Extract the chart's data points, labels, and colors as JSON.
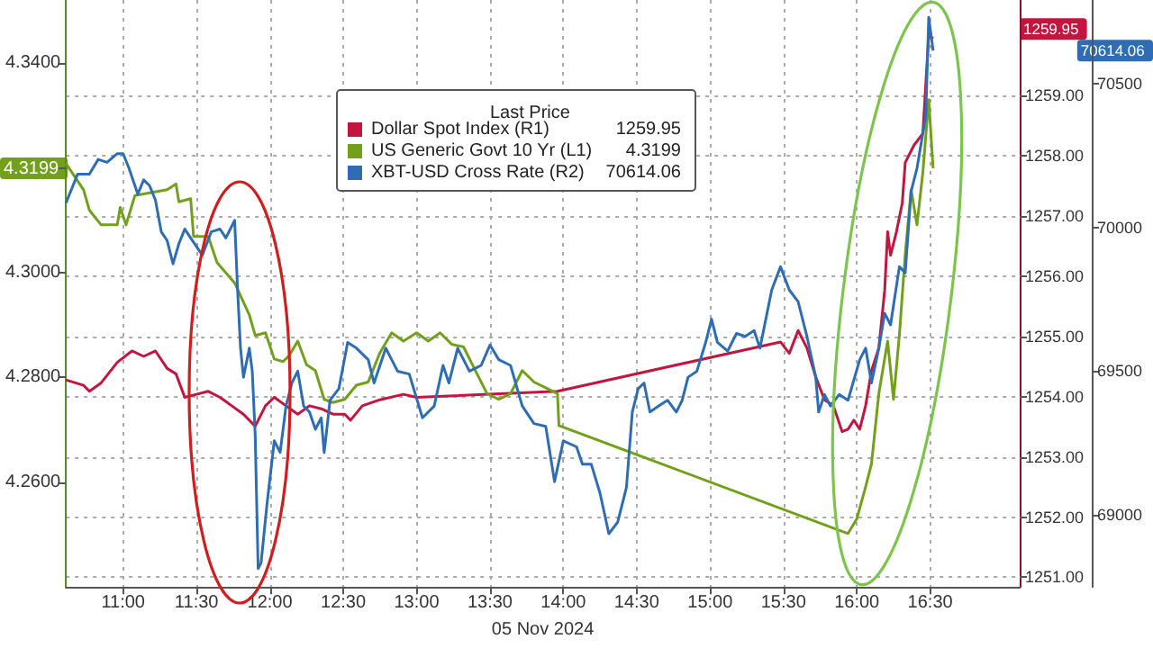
{
  "chart_data": {
    "type": "line",
    "xlabel": "05 Nov 2024",
    "legend_title": "Last Price",
    "legend": "top",
    "grid": true,
    "xlim": [
      10.61,
      17.11
    ],
    "xticks": [
      {
        "value": 11,
        "label": "11:00"
      },
      {
        "value": 11.5,
        "label": "11:30"
      },
      {
        "value": 12,
        "label": "12:00"
      },
      {
        "value": 12.5,
        "label": "12:30"
      },
      {
        "value": 13,
        "label": "13:00"
      },
      {
        "value": 13.5,
        "label": "13:30"
      },
      {
        "value": 14,
        "label": "14:00"
      },
      {
        "value": 14.5,
        "label": "14:30"
      },
      {
        "value": 15,
        "label": "15:00"
      },
      {
        "value": 15.5,
        "label": "15:30"
      },
      {
        "value": 16,
        "label": "16:00"
      },
      {
        "value": 16.5,
        "label": "16:30"
      }
    ],
    "ylim": [
      4.24,
      4.352
    ],
    "yticks": [
      {
        "value": 4.26,
        "label": "4.2600"
      },
      {
        "value": 4.28,
        "label": "4.2800"
      },
      {
        "value": 4.3,
        "label": "4.3000"
      },
      {
        "value": 4.32,
        "label": null
      },
      {
        "value": 4.34,
        "label": "4.3400"
      }
    ],
    "y2lim": [
      1250.84,
      1260.59
    ],
    "y2ticks": [
      {
        "value": 1251,
        "label": "1251.00"
      },
      {
        "value": 1252,
        "label": "1252.00"
      },
      {
        "value": 1253,
        "label": "1253.00"
      },
      {
        "value": 1254,
        "label": "1254.00"
      },
      {
        "value": 1255,
        "label": "1255.00"
      },
      {
        "value": 1256,
        "label": "1256.00"
      },
      {
        "value": 1257,
        "label": "1257.00"
      },
      {
        "value": 1258,
        "label": "1258.00"
      },
      {
        "value": 1259,
        "label": "1259.00"
      }
    ],
    "y3lim": [
      68750,
      70790
    ],
    "y3ticks": [
      69000,
      69500,
      70000,
      70500
    ],
    "annotations": [
      "1259.95",
      "4.3199",
      "70614.06"
    ],
    "series": [
      {
        "name": "Dollar Spot Index (R1)",
        "color": "#c0163f",
        "axis": "y2",
        "x": [
          10.61,
          10.73,
          10.77,
          10.85,
          10.96,
          11.06,
          11.14,
          11.22,
          11.3,
          11.36,
          11.42,
          11.5,
          11.58,
          11.66,
          11.74,
          11.82,
          11.9,
          11.97,
          12.03,
          12.11,
          12.19,
          12.27,
          12.35,
          12.43,
          12.51,
          12.55,
          12.63,
          12.75,
          12.91,
          13.0,
          13.96,
          15.48,
          15.54,
          15.6,
          15.66,
          15.72,
          15.78,
          15.84,
          15.9,
          15.94,
          15.98,
          16.02,
          16.06,
          16.1,
          16.15,
          16.19,
          16.21,
          16.23,
          16.27,
          16.31,
          16.33,
          16.39,
          16.45,
          16.49,
          16.52
        ],
        "values": [
          1254.28,
          1254.19,
          1254.09,
          1254.23,
          1254.57,
          1254.76,
          1254.67,
          1254.76,
          1254.47,
          1254.38,
          1253.99,
          1254.04,
          1254.09,
          1253.99,
          1253.85,
          1253.71,
          1253.51,
          1253.85,
          1253.99,
          1253.85,
          1253.71,
          1253.85,
          1253.8,
          1253.71,
          1253.71,
          1253.61,
          1253.85,
          1253.95,
          1254.04,
          1253.99,
          1254.09,
          1254.91,
          1254.72,
          1255.1,
          1254.81,
          1254.33,
          1253.95,
          1253.85,
          1253.42,
          1253.46,
          1253.61,
          1253.46,
          1253.85,
          1254.43,
          1254.81,
          1255.77,
          1256.74,
          1256.35,
          1256.74,
          1257.22,
          1257.89,
          1258.18,
          1258.37,
          1260.01,
          1259.95
        ]
      },
      {
        "name": "US Generic Govt 10 Yr (L1)",
        "color": "#73a01c",
        "axis": "y",
        "x": [
          10.61,
          10.73,
          10.77,
          10.85,
          10.96,
          10.98,
          11.02,
          11.08,
          11.3,
          11.36,
          11.38,
          11.46,
          11.48,
          11.58,
          11.64,
          11.76,
          11.86,
          11.9,
          11.97,
          12.03,
          12.09,
          12.13,
          12.19,
          12.25,
          12.31,
          12.37,
          12.43,
          12.51,
          12.59,
          12.67,
          12.75,
          12.83,
          12.91,
          13.0,
          13.08,
          13.16,
          13.24,
          13.32,
          13.4,
          13.48,
          13.56,
          13.64,
          13.72,
          13.8,
          13.88,
          13.96,
          13.97,
          15.94,
          16.0,
          16.06,
          16.1,
          16.15,
          16.21,
          16.25,
          16.29,
          16.33,
          16.37,
          16.41,
          16.45,
          16.49,
          16.52
        ],
        "values": [
          4.3208,
          4.3158,
          4.3119,
          4.3091,
          4.3091,
          4.3124,
          4.3091,
          4.3147,
          4.3158,
          4.3169,
          4.3135,
          4.3141,
          4.3069,
          4.3069,
          4.3019,
          4.298,
          4.2919,
          4.288,
          4.2885,
          4.2835,
          4.283,
          4.2841,
          4.2869,
          4.2824,
          4.2813,
          4.2758,
          4.2752,
          4.2758,
          4.2785,
          4.2791,
          4.2847,
          4.2885,
          4.2869,
          4.2885,
          4.2869,
          4.2885,
          4.2863,
          4.2858,
          4.2813,
          4.2769,
          4.2758,
          4.2769,
          4.2813,
          4.2791,
          4.278,
          4.2769,
          4.2708,
          4.2502,
          4.253,
          4.2591,
          4.2635,
          4.2769,
          4.2869,
          4.2758,
          4.288,
          4.3035,
          4.3158,
          4.3091,
          4.3191,
          4.333,
          4.3199
        ]
      },
      {
        "name": "XBT-USD Cross Rate (R2)",
        "color": "#2e6db4",
        "axis": "y3",
        "x": [
          10.61,
          10.69,
          10.77,
          10.83,
          10.89,
          10.96,
          11.0,
          11.04,
          11.1,
          11.14,
          11.18,
          11.22,
          11.26,
          11.3,
          11.34,
          11.38,
          11.42,
          11.46,
          11.54,
          11.6,
          11.66,
          11.7,
          11.76,
          11.78,
          11.8,
          11.82,
          11.86,
          11.88,
          11.9,
          11.92,
          11.94,
          11.98,
          12.03,
          12.07,
          12.11,
          12.15,
          12.19,
          12.23,
          12.27,
          12.31,
          12.35,
          12.37,
          12.41,
          12.47,
          12.53,
          12.59,
          12.67,
          12.71,
          12.79,
          12.87,
          12.95,
          13.04,
          13.12,
          13.18,
          13.22,
          13.28,
          13.36,
          13.44,
          13.5,
          13.56,
          13.64,
          13.72,
          13.8,
          13.88,
          13.94,
          14.0,
          14.09,
          14.13,
          14.19,
          14.25,
          14.31,
          14.37,
          14.43,
          14.47,
          14.51,
          14.55,
          14.59,
          14.65,
          14.71,
          14.77,
          14.81,
          14.85,
          14.91,
          14.97,
          15.01,
          15.05,
          15.12,
          15.18,
          15.24,
          15.3,
          15.34,
          15.42,
          15.48,
          15.54,
          15.6,
          15.66,
          15.72,
          15.74,
          15.78,
          15.82,
          15.88,
          15.94,
          16.02,
          16.06,
          16.1,
          16.15,
          16.19,
          16.23,
          16.29,
          16.33,
          16.37,
          16.41,
          16.47,
          16.49,
          16.52
        ],
        "values": [
          70084,
          70185,
          70185,
          70236,
          70226,
          70256,
          70256,
          70205,
          70115,
          70165,
          70145,
          70095,
          69984,
          69954,
          69873,
          69943,
          69994,
          69963,
          69903,
          69984,
          69994,
          69963,
          70024,
          69782,
          69580,
          69479,
          69580,
          69500,
          69278,
          68814,
          68834,
          69036,
          69258,
          69218,
          69379,
          69459,
          69500,
          69379,
          69358,
          69298,
          69338,
          69217,
          69399,
          69439,
          69600,
          69580,
          69540,
          69459,
          69580,
          69500,
          69490,
          69338,
          69379,
          69520,
          69459,
          69580,
          69500,
          69520,
          69591,
          69540,
          69520,
          69379,
          69318,
          69308,
          69116,
          69258,
          69237,
          69177,
          69177,
          69076,
          68935,
          68975,
          69096,
          69358,
          69439,
          69459,
          69358,
          69379,
          69399,
          69358,
          69399,
          69479,
          69500,
          69600,
          69681,
          69600,
          69570,
          69631,
          69621,
          69641,
          69580,
          69782,
          69863,
          69782,
          69742,
          69621,
          69479,
          69358,
          69419,
          69379,
          69419,
          69399,
          69540,
          69580,
          69459,
          69580,
          69701,
          69661,
          69863,
          69842,
          70125,
          70205,
          70387,
          70730,
          70614
        ]
      }
    ]
  }
}
